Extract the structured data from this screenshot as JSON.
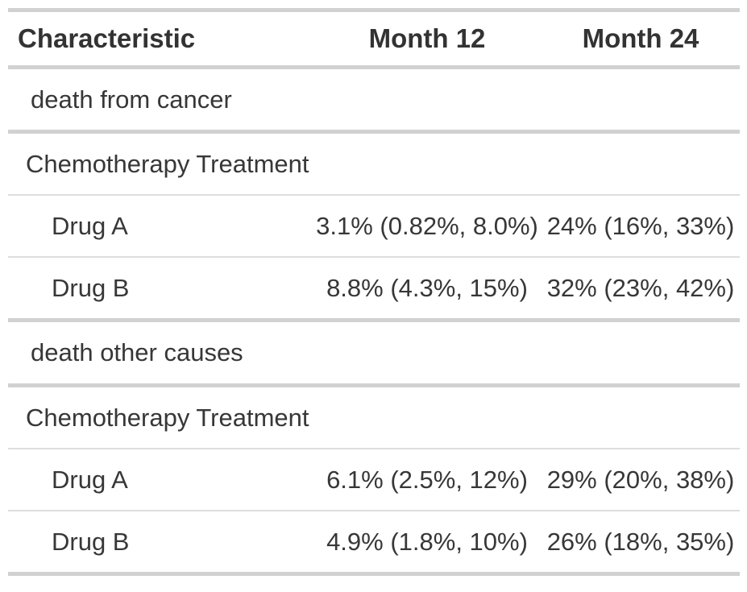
{
  "chart_data": {
    "type": "table",
    "title": "",
    "columns": [
      "Characteristic",
      "Month 12",
      "Month 24"
    ],
    "rows": [
      {
        "characteristic": "death from cancer",
        "month12": "",
        "month24": "",
        "row_type": "group"
      },
      {
        "characteristic": "Chemotherapy Treatment",
        "month12": "",
        "month24": "",
        "row_type": "variable"
      },
      {
        "characteristic": "Drug A",
        "month12": "3.1% (0.82%, 8.0%)",
        "month24": "24% (16%, 33%)",
        "row_type": "level"
      },
      {
        "characteristic": "Drug B",
        "month12": "8.8% (4.3%, 15%)",
        "month24": "32% (23%, 42%)",
        "row_type": "level"
      },
      {
        "characteristic": "death other causes",
        "month12": "",
        "month24": "",
        "row_type": "group"
      },
      {
        "characteristic": "Chemotherapy Treatment",
        "month12": "",
        "month24": "",
        "row_type": "variable"
      },
      {
        "characteristic": "Drug A",
        "month12": "6.1% (2.5%, 12%)",
        "month24": "29% (20%, 38%)",
        "row_type": "level"
      },
      {
        "characteristic": "Drug B",
        "month12": "4.9% (1.8%, 10%)",
        "month24": "26% (18%, 35%)",
        "row_type": "level"
      }
    ]
  },
  "table": {
    "header": {
      "characteristic": "Characteristic",
      "month12": "Month 12",
      "month24": "Month 24"
    },
    "rows": [
      {
        "label": "death from cancer",
        "month12": "",
        "month24": ""
      },
      {
        "label": "Chemotherapy Treatment",
        "month12": "",
        "month24": ""
      },
      {
        "label": "Drug A",
        "month12": "3.1% (0.82%, 8.0%)",
        "month24": "24% (16%, 33%)"
      },
      {
        "label": "Drug B",
        "month12": "8.8% (4.3%, 15%)",
        "month24": "32% (23%, 42%)"
      },
      {
        "label": "death other causes",
        "month12": "",
        "month24": ""
      },
      {
        "label": "Chemotherapy Treatment",
        "month12": "",
        "month24": ""
      },
      {
        "label": "Drug A",
        "month12": "6.1% (2.5%, 12%)",
        "month24": "29% (20%, 38%)"
      },
      {
        "label": "Drug B",
        "month12": "4.9% (1.8%, 10%)",
        "month24": "26% (18%, 35%)"
      }
    ],
    "colors": {
      "text_body": "#373737",
      "text_header": "#333333",
      "border_thick": "#d1d1d1",
      "border_thin": "#dedede",
      "background": "#ffffff"
    }
  }
}
